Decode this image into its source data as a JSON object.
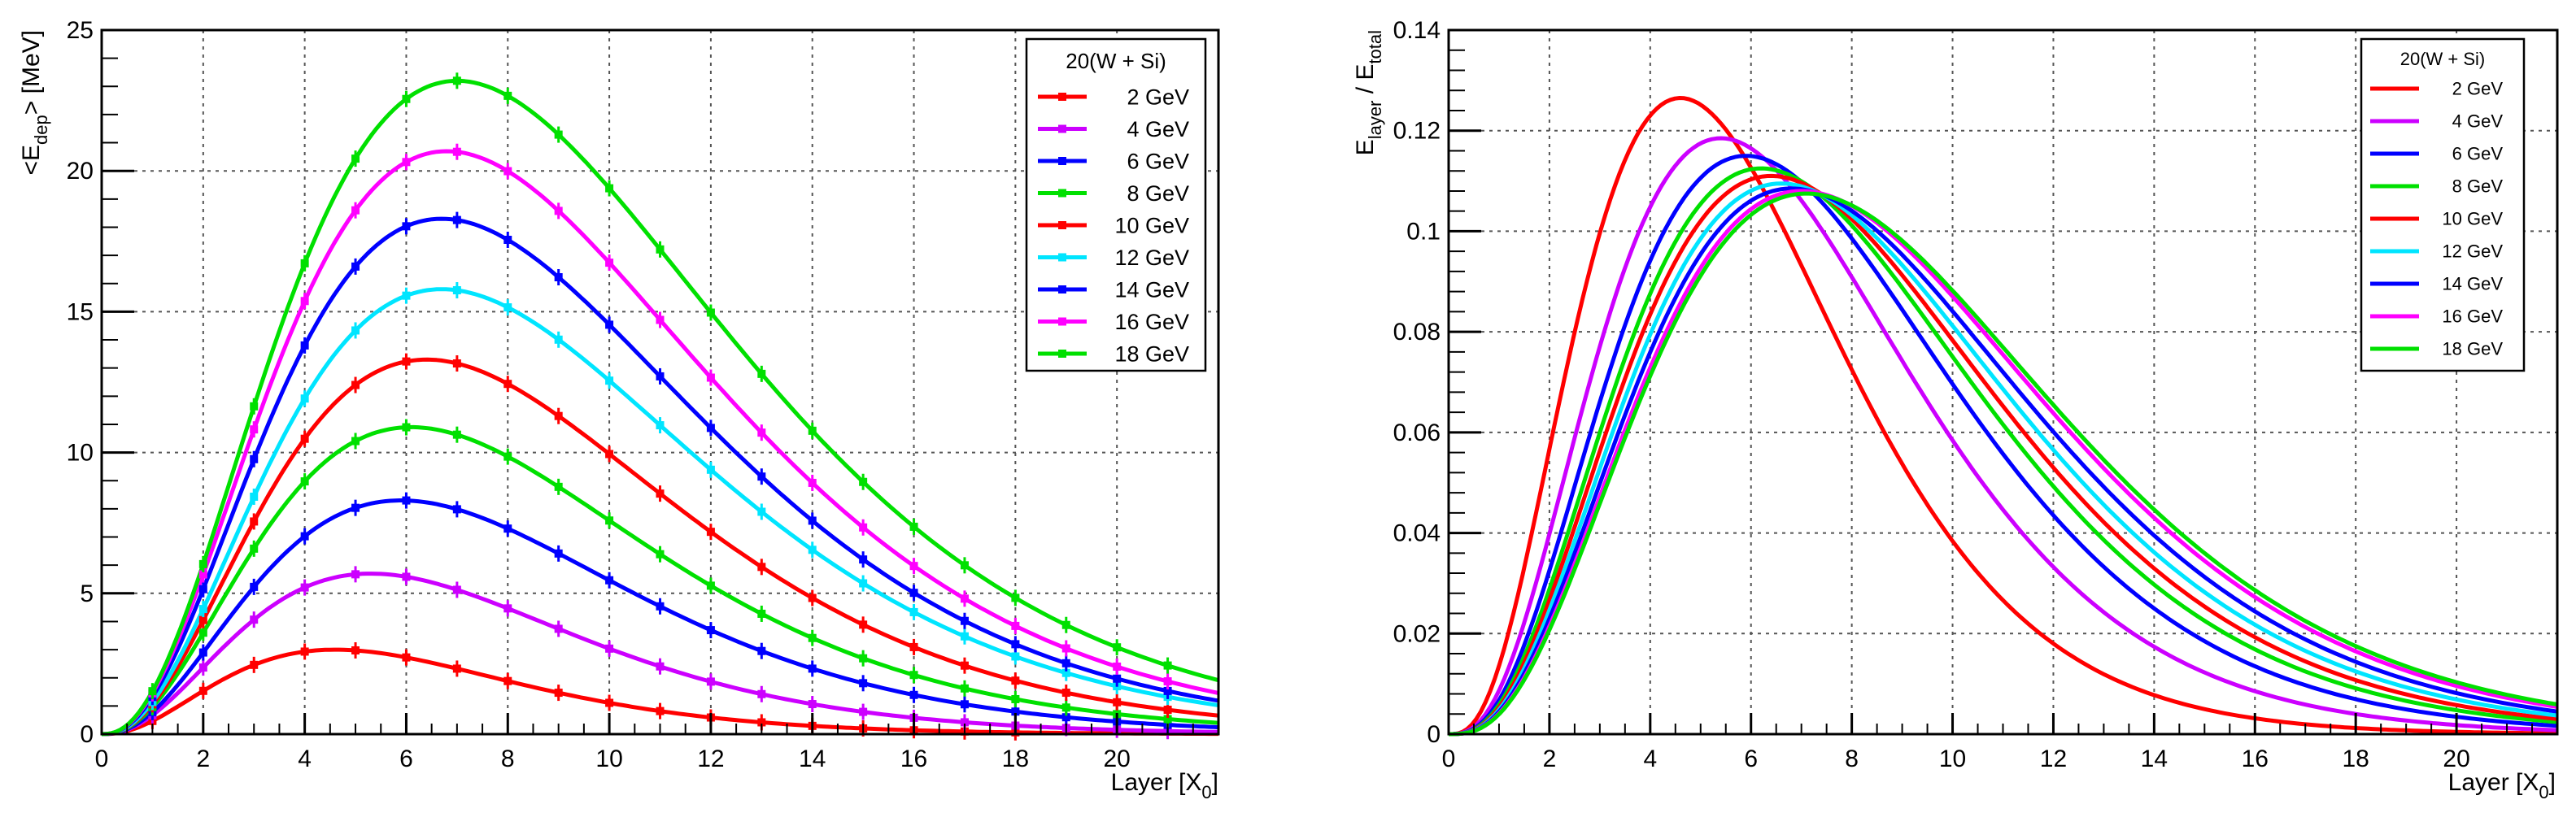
{
  "chart_data": [
    {
      "type": "line",
      "title": "",
      "xlabel": "Layer [X0]",
      "xlabel_main": "Layer [X",
      "xlabel_sub": "0",
      "xlabel_tail": "]",
      "ylabel": "<Edep> [MeV]",
      "ylabel_pre": "<E",
      "ylabel_sub": "dep",
      "ylabel_post": "> [MeV]",
      "xlim": [
        0,
        22
      ],
      "ylim": [
        0,
        25
      ],
      "x_ticks": [
        "0",
        "2",
        "4",
        "6",
        "8",
        "10",
        "12",
        "14",
        "16",
        "18",
        "20"
      ],
      "y_ticks": [
        "0",
        "5",
        "10",
        "15",
        "20",
        "25"
      ],
      "grid": true,
      "legend_title": "20(W + Si)",
      "legend_position": "top-right",
      "markers": true,
      "series": [
        {
          "name": "2 GeV",
          "color": "#ff0000",
          "peak_x": 4.6,
          "peak_y": 3.0,
          "shape_a": 2.5
        },
        {
          "name": "4 GeV",
          "color": "#cc00ff",
          "peak_x": 5.3,
          "peak_y": 5.7,
          "shape_a": 2.5
        },
        {
          "name": "6 GeV",
          "color": "#0000ff",
          "peak_x": 5.9,
          "peak_y": 8.3,
          "shape_a": 2.5
        },
        {
          "name": "8 GeV",
          "color": "#00e000",
          "peak_x": 6.1,
          "peak_y": 10.9,
          "shape_a": 2.5
        },
        {
          "name": "10 GeV",
          "color": "#ff0000",
          "peak_x": 6.4,
          "peak_y": 13.3,
          "shape_a": 2.5
        },
        {
          "name": "12 GeV",
          "color": "#00e5ff",
          "peak_x": 6.7,
          "peak_y": 15.8,
          "shape_a": 2.5
        },
        {
          "name": "14 GeV",
          "color": "#0000ff",
          "peak_x": 6.7,
          "peak_y": 18.3,
          "shape_a": 2.5
        },
        {
          "name": "16 GeV",
          "color": "#ff00ff",
          "peak_x": 6.8,
          "peak_y": 20.7,
          "shape_a": 2.5
        },
        {
          "name": "18 GeV",
          "color": "#00e000",
          "peak_x": 7.0,
          "peak_y": 23.2,
          "shape_a": 2.5
        }
      ]
    },
    {
      "type": "line",
      "title": "",
      "xlabel": "Layer [X0]",
      "xlabel_main": "Layer [X",
      "xlabel_sub": "0",
      "xlabel_tail": "]",
      "ylabel": "Elayer / Etotal",
      "ylabel_a": "E",
      "ylabel_a_sub": "layer",
      "ylabel_mid": " / E",
      "ylabel_b_sub": "total",
      "xlim": [
        0,
        22
      ],
      "ylim": [
        0,
        0.14
      ],
      "x_ticks": [
        "0",
        "2",
        "4",
        "6",
        "8",
        "10",
        "12",
        "14",
        "16",
        "18",
        "20"
      ],
      "y_ticks": [
        "0",
        "0.02",
        "0.04",
        "0.06",
        "0.08",
        "0.1",
        "0.12",
        "0.14"
      ],
      "grid": true,
      "legend_title": "20(W + Si)",
      "legend_position": "top-right",
      "markers": false,
      "series": [
        {
          "name": "2 GeV",
          "color": "#ff0000",
          "peak_x": 4.6,
          "peak_y": 0.1265,
          "shape_a": 3.0
        },
        {
          "name": "4 GeV",
          "color": "#cc00ff",
          "peak_x": 5.4,
          "peak_y": 0.1185,
          "shape_a": 3.0
        },
        {
          "name": "6 GeV",
          "color": "#0000ff",
          "peak_x": 5.9,
          "peak_y": 0.115,
          "shape_a": 3.0
        },
        {
          "name": "8 GeV",
          "color": "#00e000",
          "peak_x": 6.2,
          "peak_y": 0.1125,
          "shape_a": 3.0
        },
        {
          "name": "10 GeV",
          "color": "#ff0000",
          "peak_x": 6.4,
          "peak_y": 0.111,
          "shape_a": 3.0
        },
        {
          "name": "12 GeV",
          "color": "#00e5ff",
          "peak_x": 6.6,
          "peak_y": 0.1095,
          "shape_a": 3.0
        },
        {
          "name": "14 GeV",
          "color": "#0000ff",
          "peak_x": 6.8,
          "peak_y": 0.1085,
          "shape_a": 3.0
        },
        {
          "name": "16 GeV",
          "color": "#ff00ff",
          "peak_x": 7.0,
          "peak_y": 0.108,
          "shape_a": 3.0
        },
        {
          "name": "18 GeV",
          "color": "#00e000",
          "peak_x": 7.1,
          "peak_y": 0.1075,
          "shape_a": 3.0
        }
      ]
    }
  ]
}
